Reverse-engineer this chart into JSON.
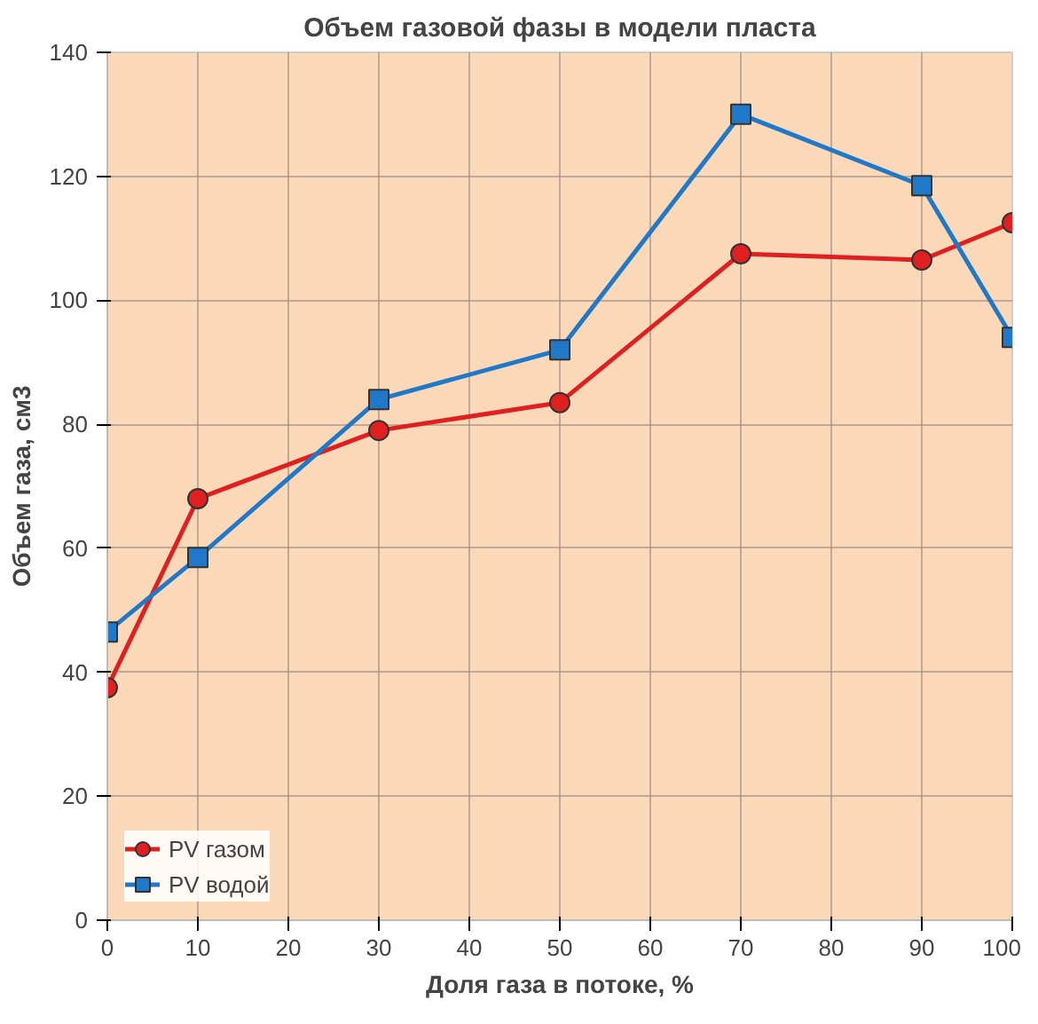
{
  "chart_data": {
    "type": "line",
    "title": "Объем газовой фазы в модели пласта",
    "xlabel": "Доля газа в потоке, %",
    "ylabel": "Объем газа, см3",
    "x": [
      0,
      10,
      30,
      50,
      70,
      90,
      100
    ],
    "series": [
      {
        "name": "PV газом",
        "color": "#e02020",
        "marker": "circle",
        "values": [
          37.5,
          68,
          79,
          83.5,
          107.5,
          106.5,
          112.5
        ]
      },
      {
        "name": "PV водой",
        "color": "#1f78c8",
        "marker": "square",
        "values": [
          46.5,
          58.5,
          84,
          92,
          130,
          118.5,
          94
        ]
      }
    ],
    "xlim": [
      0,
      100
    ],
    "ylim": [
      0,
      140
    ],
    "xticks": [
      0,
      10,
      20,
      30,
      40,
      50,
      60,
      70,
      80,
      90,
      100
    ],
    "yticks": [
      0,
      20,
      40,
      60,
      80,
      100,
      120,
      140
    ],
    "grid": true,
    "legend": "bottom left",
    "line_style": "solid"
  }
}
